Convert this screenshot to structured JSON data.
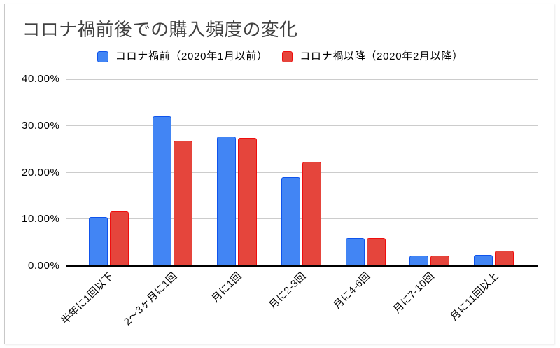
{
  "chart_data": {
    "type": "bar",
    "title": "コロナ禍前後での購入頻度の変化",
    "categories": [
      "半年に1回以下",
      "2〜3ヶ月に1回",
      "月に1回",
      "月に2-3回",
      "月に4-6回",
      "月に7-10回",
      "月に11回以上"
    ],
    "series": [
      {
        "name": "コロナ禍前（2020年1月以前）",
        "values": [
          10.4,
          32.0,
          27.7,
          19.0,
          5.8,
          2.1,
          2.3
        ],
        "color": "#4285F4",
        "border_color": "#0F54EC"
      },
      {
        "name": "コロナ禍以降（2020年2月以降）",
        "values": [
          11.5,
          26.7,
          27.4,
          22.3,
          5.8,
          2.1,
          3.1
        ],
        "color": "#E5453C",
        "border_color": "#F00D0D"
      }
    ],
    "unit": "percent",
    "y_axis": {
      "min": 0,
      "max": 40,
      "tick_step": 10,
      "tick_labels": [
        "0.00%",
        "10.00%",
        "20.00%",
        "30.00%",
        "40.00%"
      ]
    },
    "x_tick_rotation_deg": -45,
    "grid": true,
    "legend_position": "top",
    "xlabel": "",
    "ylabel": ""
  },
  "style_colors": {
    "grid_line": "#cccccc",
    "axis_line": "#000000",
    "title_text": "#404040",
    "tick_text": "#000000",
    "legend_text": "#000000",
    "card_border": "#c8c8c8",
    "background": "#ffffff"
  }
}
